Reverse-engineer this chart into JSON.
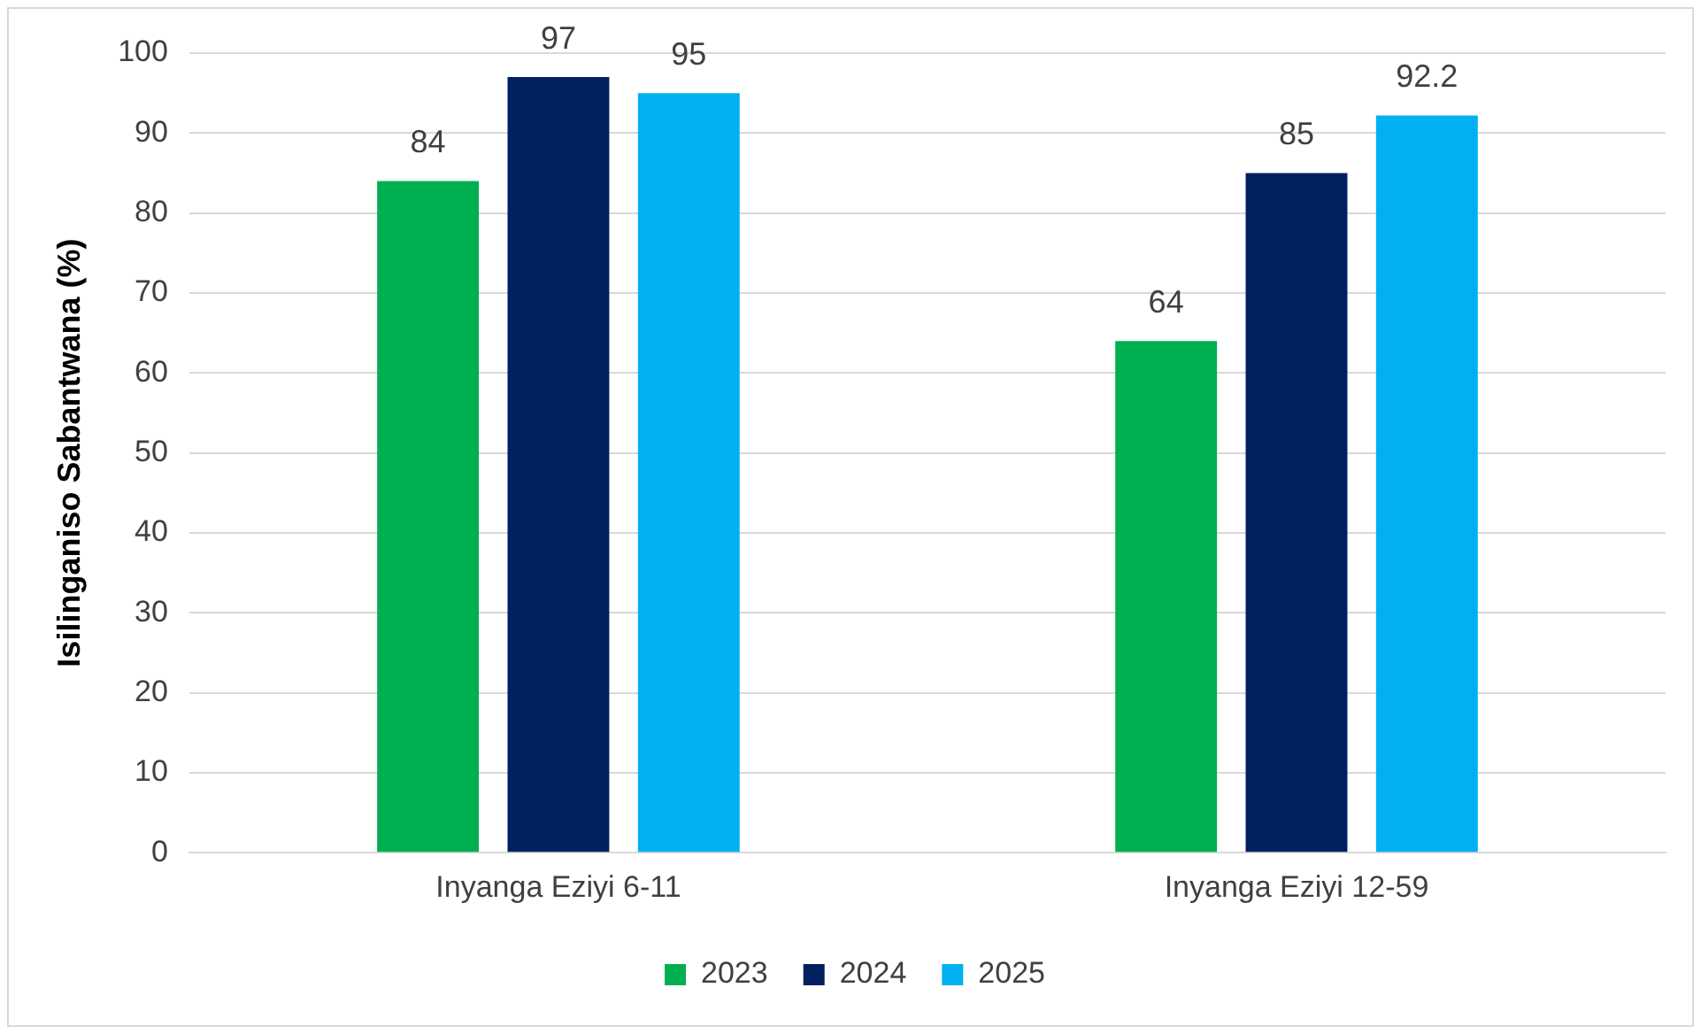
{
  "chart_data": {
    "type": "bar",
    "ylabel": "Isilinganiso Sabantwana (%)",
    "categories": [
      "Inyanga Eziyi 6-11",
      "Inyanga Eziyi 12-59"
    ],
    "series": [
      {
        "name": "2023",
        "color": "#00b050",
        "values": [
          84,
          64
        ]
      },
      {
        "name": "2024",
        "color": "#002060",
        "values": [
          97,
          85
        ]
      },
      {
        "name": "2025",
        "color": "#00b0f0",
        "values": [
          95,
          92.2
        ]
      }
    ],
    "ylim": [
      0,
      100
    ],
    "yticks": [
      0,
      10,
      20,
      30,
      40,
      50,
      60,
      70,
      80,
      90,
      100
    ],
    "grid": "y",
    "legend": "bottom",
    "data_labels": true
  }
}
